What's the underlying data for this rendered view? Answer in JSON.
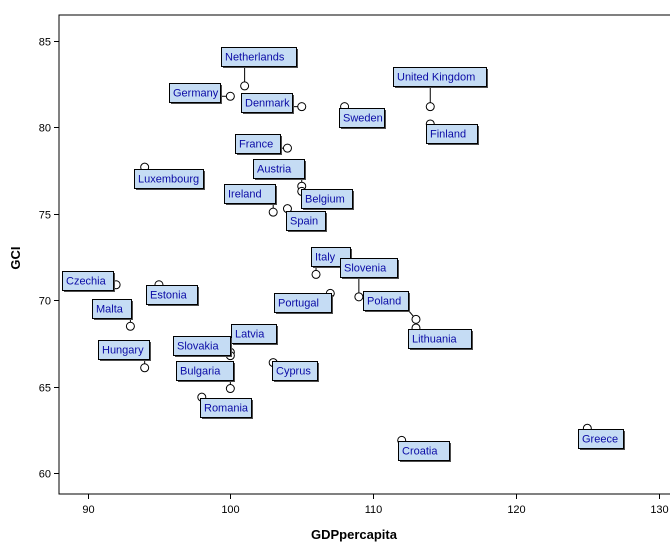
{
  "chart_data": {
    "type": "scatter",
    "title": "",
    "xlabel": "GDPpercapita",
    "ylabel": "GCI",
    "xlim": [
      88,
      131
    ],
    "ylim": [
      58.8,
      86.5
    ],
    "xticks": [
      90,
      100,
      110,
      120,
      130
    ],
    "yticks": [
      60,
      65,
      70,
      75,
      80,
      85
    ],
    "grid": false,
    "points": [
      {
        "label": "Netherlands",
        "x": 101,
        "y": 82.4
      },
      {
        "label": "Germany",
        "x": 100,
        "y": 81.8
      },
      {
        "label": "Denmark",
        "x": 105,
        "y": 81.2
      },
      {
        "label": "Sweden",
        "x": 108,
        "y": 81.2
      },
      {
        "label": "United Kingdom",
        "x": 114,
        "y": 81.2
      },
      {
        "label": "Finland",
        "x": 114,
        "y": 80.2
      },
      {
        "label": "France",
        "x": 104,
        "y": 78.8
      },
      {
        "label": "Luxembourg",
        "x": 94,
        "y": 77.7
      },
      {
        "label": "Austria",
        "x": 105,
        "y": 76.6
      },
      {
        "label": "Belgium",
        "x": 105,
        "y": 76.3
      },
      {
        "label": "Ireland",
        "x": 103,
        "y": 75.1
      },
      {
        "label": "Spain",
        "x": 104,
        "y": 75.3
      },
      {
        "label": "Italy",
        "x": 106,
        "y": 71.5
      },
      {
        "label": "Slovenia",
        "x": 109,
        "y": 70.2
      },
      {
        "label": "Portugal",
        "x": 107,
        "y": 70.4
      },
      {
        "label": "Czechia",
        "x": 92,
        "y": 70.9
      },
      {
        "label": "Estonia",
        "x": 95,
        "y": 70.9
      },
      {
        "label": "Poland",
        "x": 113,
        "y": 68.9
      },
      {
        "label": "Lithuania",
        "x": 113,
        "y": 68.4
      },
      {
        "label": "Malta",
        "x": 93,
        "y": 68.5
      },
      {
        "label": "Latvia",
        "x": 100,
        "y": 67.0
      },
      {
        "label": "Slovakia",
        "x": 100,
        "y": 66.8
      },
      {
        "label": "Hungary",
        "x": 94,
        "y": 66.1
      },
      {
        "label": "Cyprus",
        "x": 103,
        "y": 66.4
      },
      {
        "label": "Bulgaria",
        "x": 100,
        "y": 64.9
      },
      {
        "label": "Romania",
        "x": 98,
        "y": 64.4
      },
      {
        "label": "Greece",
        "x": 125,
        "y": 62.6
      },
      {
        "label": "Croatia",
        "x": 112,
        "y": 61.9
      }
    ]
  },
  "colors": {
    "label_fill": "#c5dcf4",
    "label_text": "#0a0aa5",
    "label_border": "#000000",
    "marker_fill": "#ffffff",
    "marker_stroke": "#000000"
  }
}
